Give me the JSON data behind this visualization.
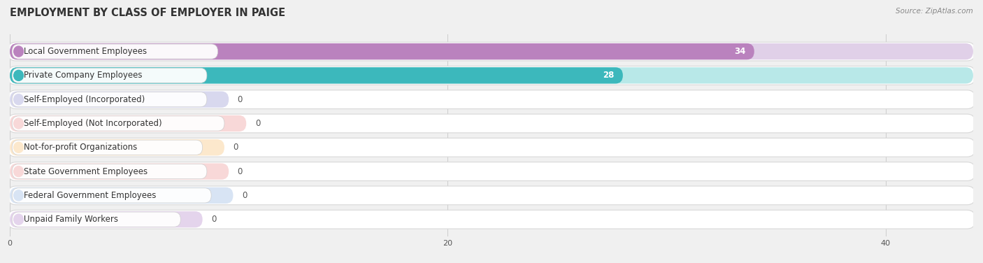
{
  "title": "EMPLOYMENT BY CLASS OF EMPLOYER IN PAIGE",
  "source": "Source: ZipAtlas.com",
  "categories": [
    "Local Government Employees",
    "Private Company Employees",
    "Self-Employed (Incorporated)",
    "Self-Employed (Not Incorporated)",
    "Not-for-profit Organizations",
    "State Government Employees",
    "Federal Government Employees",
    "Unpaid Family Workers"
  ],
  "values": [
    34,
    28,
    0,
    0,
    0,
    0,
    0,
    0
  ],
  "bar_colors": [
    "#ba82be",
    "#3cb8bc",
    "#9898cc",
    "#f08888",
    "#f5c080",
    "#f09090",
    "#90a8d8",
    "#b898cc"
  ],
  "bar_bg_colors": [
    "#e0d0e8",
    "#b8e8e8",
    "#d8d8ee",
    "#f8d8d8",
    "#fce8cc",
    "#f8d8d8",
    "#d8e4f4",
    "#e4d4ec"
  ],
  "row_border_colors": [
    "#c8a8d0",
    "#70c8cc",
    "#b0b0d8",
    "#f0a0a0",
    "#f0c890",
    "#f0a8a8",
    "#a8bce0",
    "#c8a8d8"
  ],
  "xlim": [
    0,
    44
  ],
  "xticks": [
    0,
    20,
    40
  ],
  "title_fontsize": 10.5,
  "label_fontsize": 8.5,
  "value_fontsize": 8.5,
  "background_color": "#f0f0f0",
  "row_bg_color": "#ffffff"
}
